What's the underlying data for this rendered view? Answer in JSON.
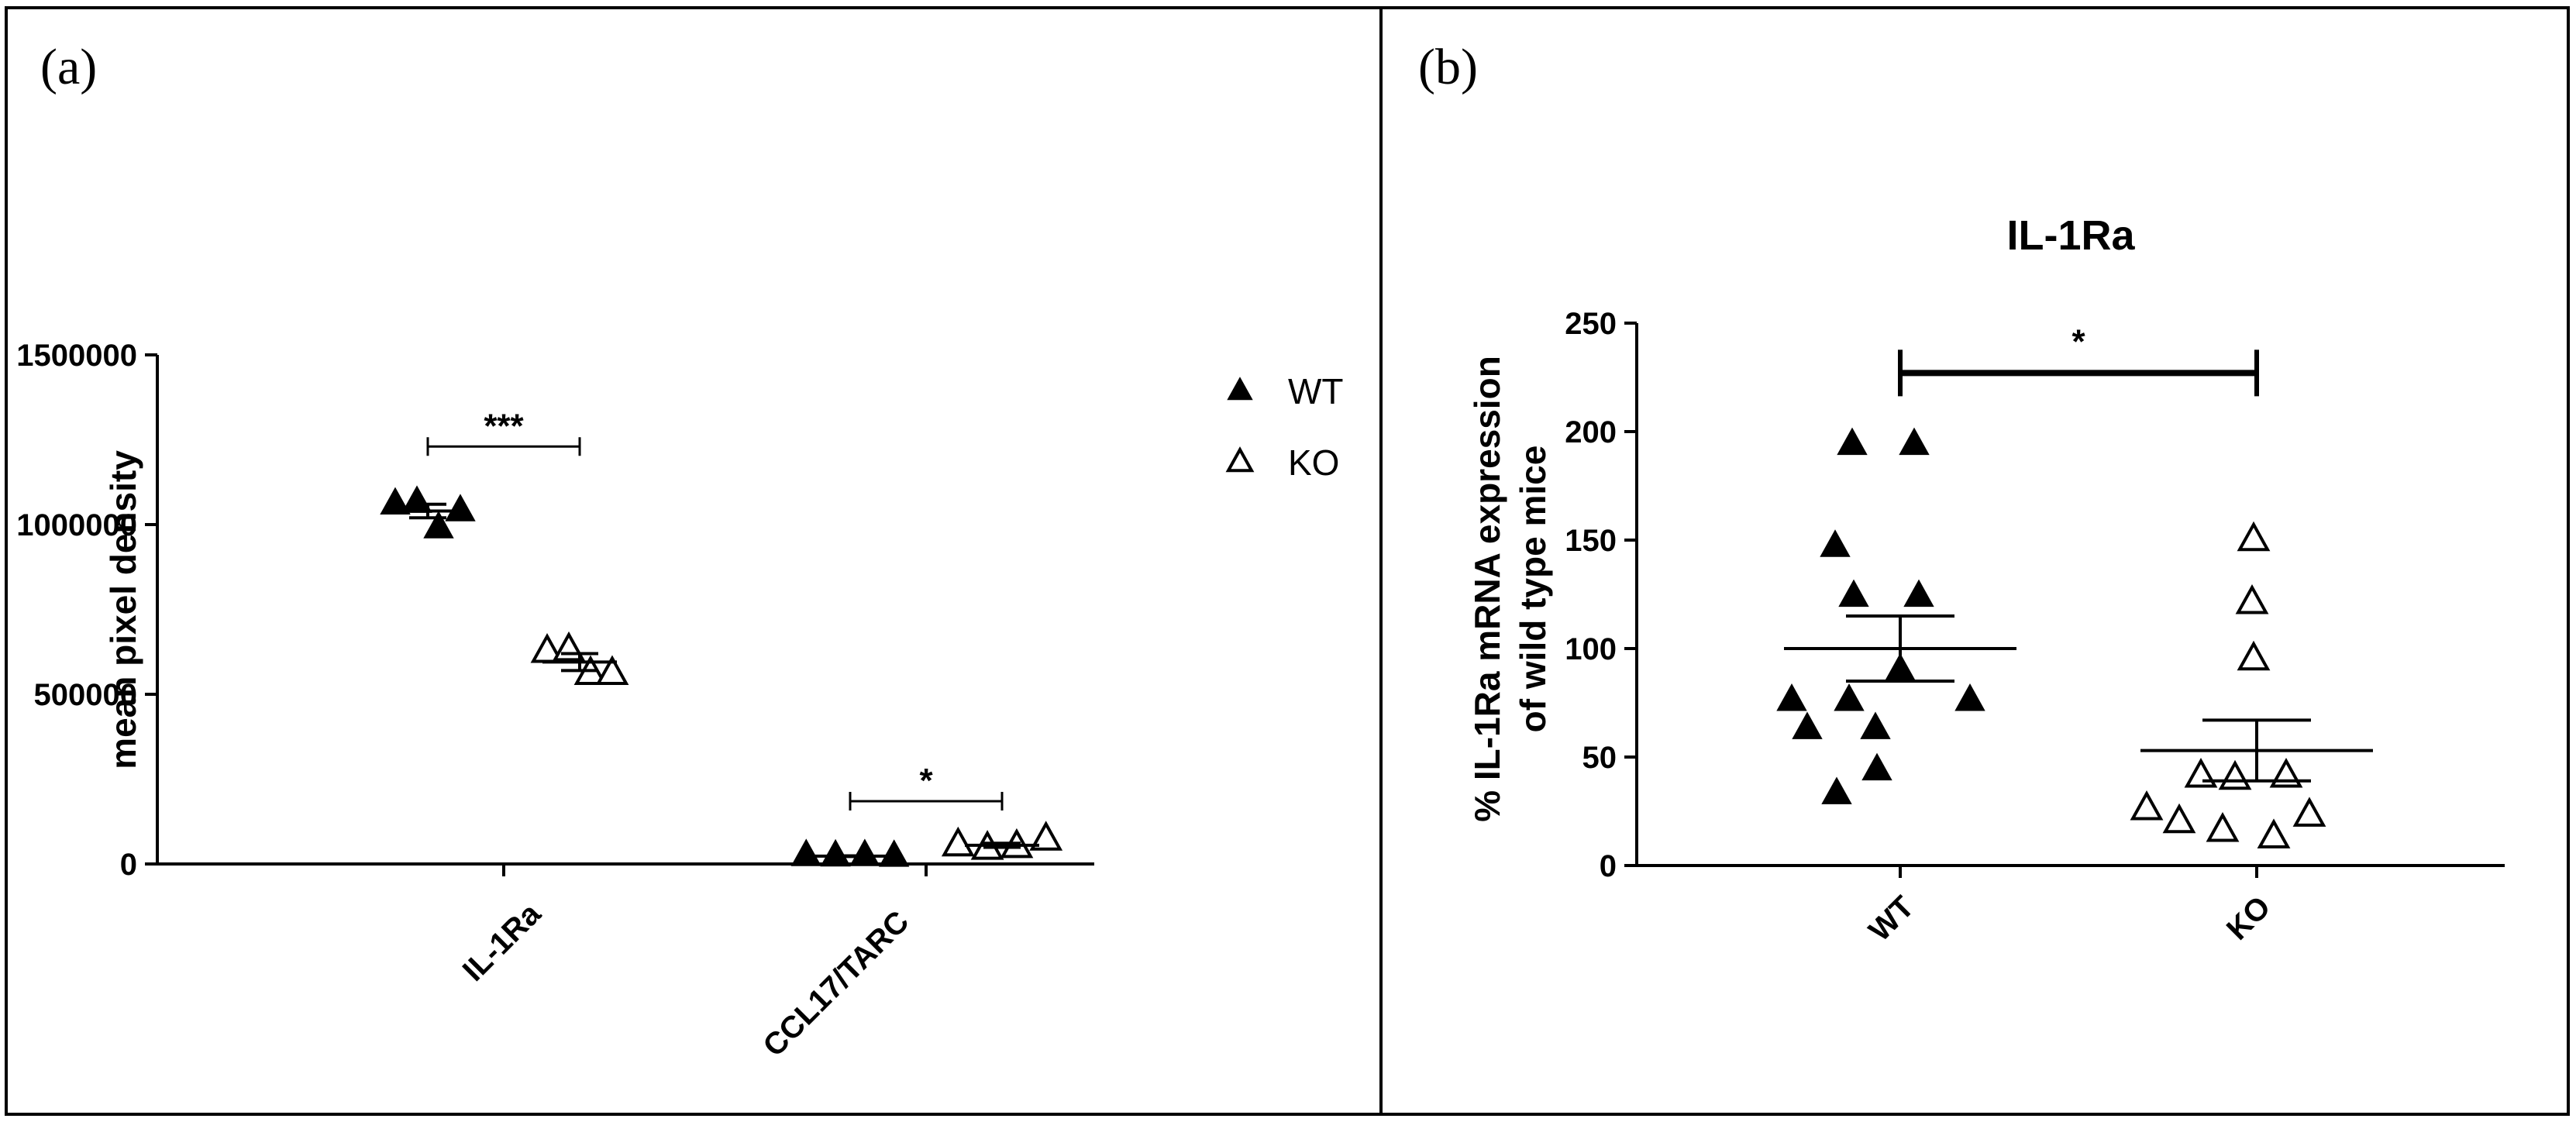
{
  "panels": {
    "a": {
      "label": "(a)"
    },
    "b": {
      "label": "(b)"
    }
  },
  "chart_data": [
    {
      "type": "scatter",
      "title": "",
      "xlabel": "",
      "ylabel": "mean pixel density",
      "ylim": [
        0,
        1500000
      ],
      "yticks": [
        0,
        500000,
        1000000,
        1500000
      ],
      "ytick_labels": [
        "0",
        "500000",
        "1000000",
        "1500000"
      ],
      "categories": [
        "IL-1Ra",
        "CCL17/TARC"
      ],
      "legend": {
        "position": "right",
        "entries": [
          "WT",
          "KO"
        ]
      },
      "series": [
        {
          "name": "WT",
          "marker": "filled-triangle",
          "values": [
            [
              1060000,
              1065000,
              990000,
              1040000
            ],
            [
              24000,
              23000,
              24000,
              22000
            ]
          ],
          "mean": [
            1040000,
            23000
          ],
          "sem": [
            20000,
            1000
          ]
        },
        {
          "name": "KO",
          "marker": "open-triangle",
          "values": [
            [
              625000,
              630000,
              560000,
              560000
            ],
            [
              55000,
              45000,
              50000,
              72000
            ]
          ],
          "mean": [
            595000,
            55000
          ],
          "sem": [
            25000,
            6000
          ]
        }
      ],
      "significance": [
        {
          "category": "IL-1Ra",
          "label": "***",
          "y": 1230000
        },
        {
          "category": "CCL17/TARC",
          "label": "*",
          "y": 185000
        }
      ]
    },
    {
      "type": "scatter",
      "title": "IL-1Ra",
      "xlabel": "",
      "ylabel": [
        "% IL-1Ra mRNA expression",
        "of wild type mice"
      ],
      "ylim": [
        0,
        250
      ],
      "yticks": [
        0,
        50,
        100,
        150,
        200,
        250
      ],
      "ytick_labels": [
        "0",
        "50",
        "100",
        "150",
        "200",
        "250"
      ],
      "categories": [
        "WT",
        "KO"
      ],
      "series": [
        {
          "name": "WT",
          "marker": "filled-triangle",
          "values": [
            194,
            194,
            147,
            124,
            124,
            90,
            76,
            76,
            76,
            63,
            63,
            44,
            33
          ],
          "mean": 100,
          "sem": 15
        },
        {
          "name": "KO",
          "marker": "open-triangle",
          "values": [
            150,
            121,
            95,
            41,
            41,
            40,
            26,
            23,
            20,
            16,
            13
          ],
          "mean": 53,
          "sem": 14
        }
      ],
      "significance": [
        {
          "categories": [
            "WT",
            "KO"
          ],
          "label": "*",
          "y": 227
        }
      ]
    }
  ]
}
